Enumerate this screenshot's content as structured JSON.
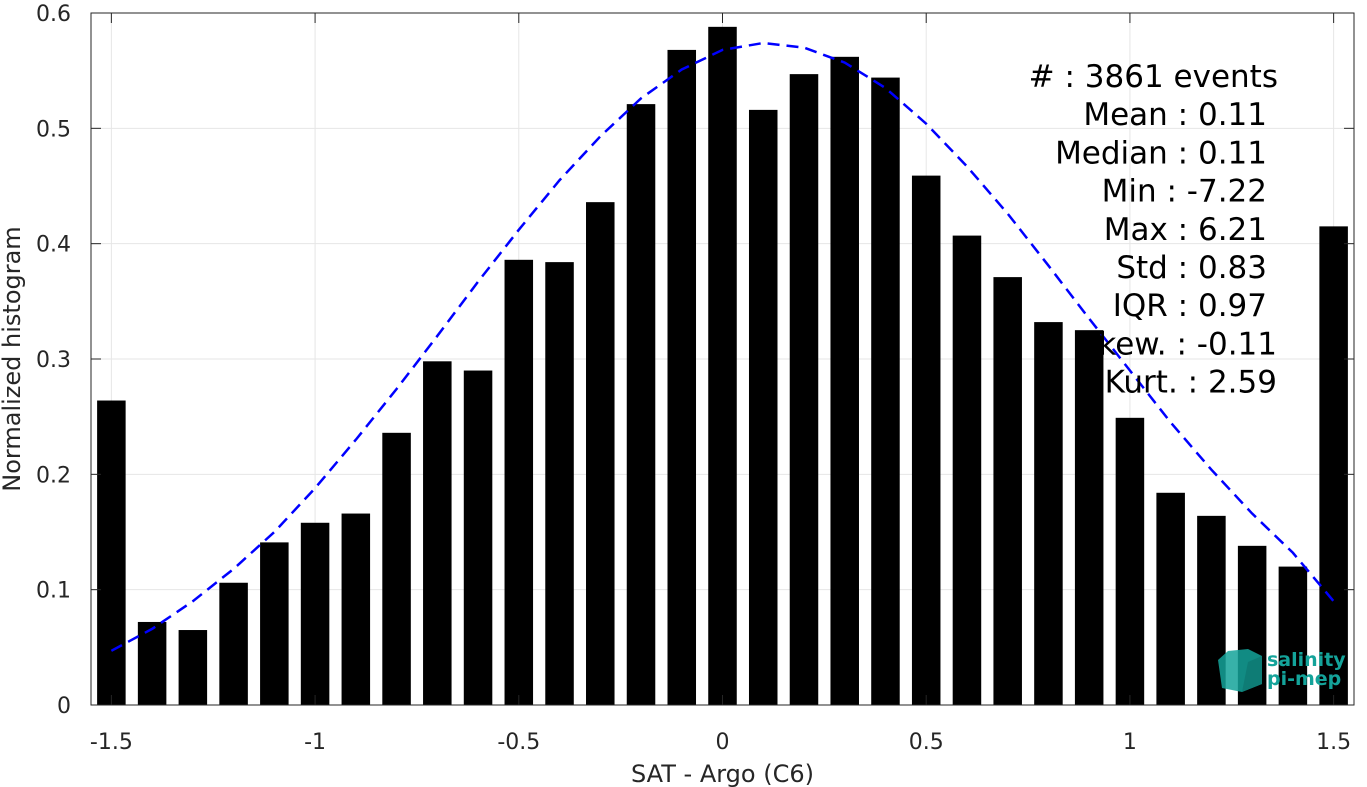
{
  "chart_data": {
    "type": "bar",
    "xlabel": "SAT - Argo (C6)",
    "ylabel": "Normalized histogram",
    "xlim": [
      -1.55,
      1.55
    ],
    "ylim": [
      0,
      0.6
    ],
    "grid": true,
    "xticks": [
      -1.5,
      -1,
      -0.5,
      0,
      0.5,
      1,
      1.5
    ],
    "xtick_labels": [
      "-1.5",
      "-1",
      "-0.5",
      "0",
      "0.5",
      "1",
      "1.5"
    ],
    "yticks": [
      0,
      0.1,
      0.2,
      0.3,
      0.4,
      0.5,
      0.6
    ],
    "ytick_labels": [
      "0",
      "0.1",
      "0.2",
      "0.3",
      "0.4",
      "0.5",
      "0.6"
    ],
    "bar_color": "#000000",
    "bins": {
      "x": [
        -1.5,
        -1.4,
        -1.3,
        -1.2,
        -1.1,
        -1.0,
        -0.9,
        -0.8,
        -0.7,
        -0.6,
        -0.5,
        -0.4,
        -0.3,
        -0.2,
        -0.1,
        0.0,
        0.1,
        0.2,
        0.3,
        0.4,
        0.5,
        0.6,
        0.7,
        0.8,
        0.9,
        1.0,
        1.1,
        1.2,
        1.3,
        1.4,
        1.5
      ],
      "values": [
        0.264,
        0.072,
        0.065,
        0.106,
        0.141,
        0.158,
        0.166,
        0.236,
        0.298,
        0.29,
        0.386,
        0.384,
        0.436,
        0.521,
        0.568,
        0.588,
        0.516,
        0.547,
        0.562,
        0.544,
        0.459,
        0.407,
        0.371,
        0.332,
        0.325,
        0.249,
        0.184,
        0.164,
        0.138,
        0.12,
        0.415
      ]
    },
    "fit": {
      "style": "dashed",
      "color": "#0000ff",
      "x": [
        -1.5,
        -1.4,
        -1.3,
        -1.2,
        -1.1,
        -1.0,
        -0.9,
        -0.8,
        -0.7,
        -0.6,
        -0.5,
        -0.4,
        -0.3,
        -0.2,
        -0.1,
        0.0,
        0.1,
        0.2,
        0.3,
        0.4,
        0.5,
        0.6,
        0.7,
        0.8,
        0.9,
        1.0,
        1.1,
        1.2,
        1.3,
        1.4,
        1.5
      ],
      "values": [
        0.047,
        0.066,
        0.09,
        0.118,
        0.15,
        0.188,
        0.23,
        0.274,
        0.32,
        0.367,
        0.412,
        0.455,
        0.493,
        0.526,
        0.551,
        0.568,
        0.574,
        0.57,
        0.557,
        0.535,
        0.504,
        0.467,
        0.426,
        0.381,
        0.335,
        0.29,
        0.245,
        0.204,
        0.166,
        0.132,
        0.09
      ]
    },
    "annotations": [
      "#  : 3861 events",
      "Mean : 0.11",
      "Median : 0.11",
      "Min : -7.22",
      "Max : 6.21",
      "Std : 0.83",
      "IQR : 0.97",
      "Skew. : -0.11",
      "Kurt. : 2.59"
    ]
  },
  "logo": {
    "line1": "salinity",
    "line2": "pi-mep",
    "color": "#14a39a"
  }
}
